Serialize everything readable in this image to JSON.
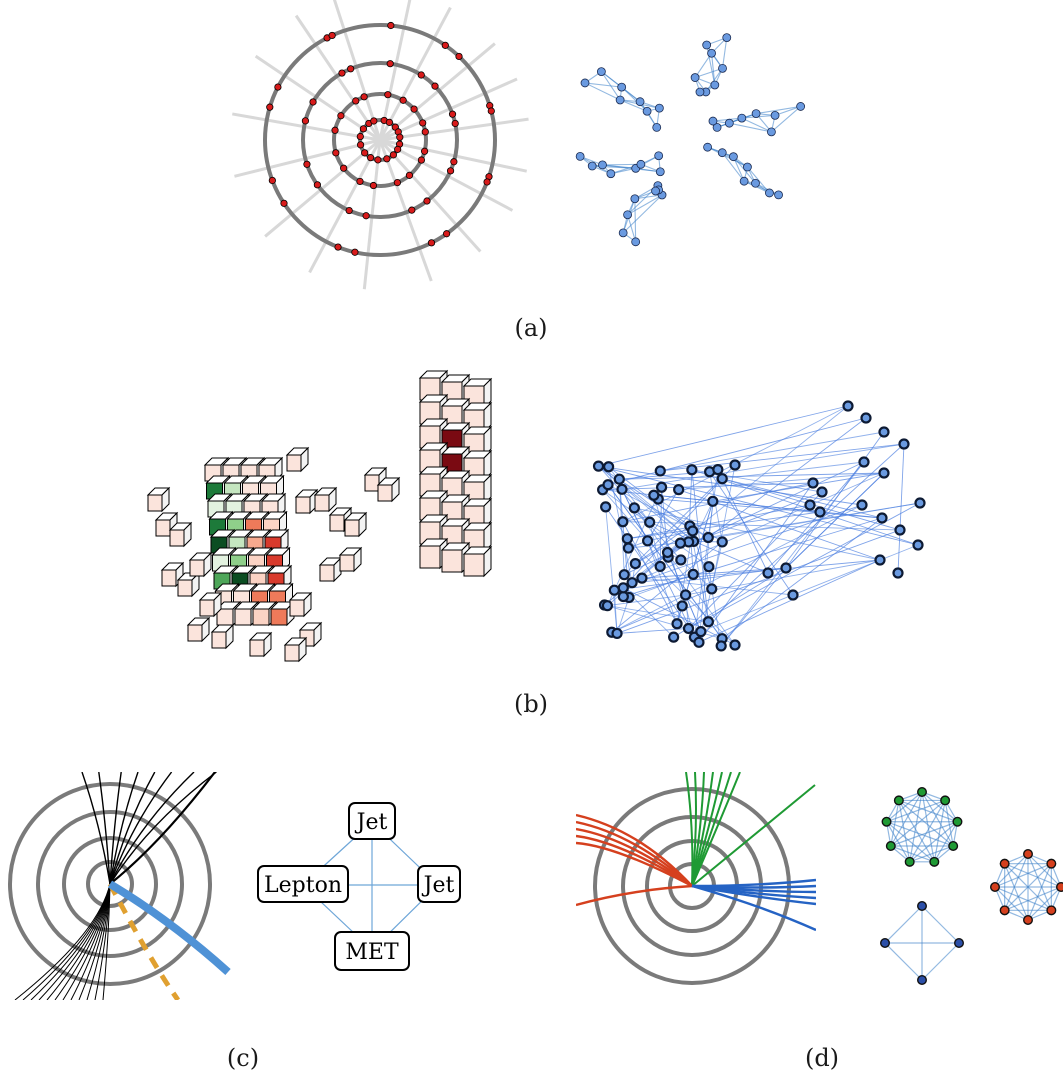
{
  "captions": {
    "a": "(a)",
    "b": "(b)",
    "c": "(c)",
    "d": "(d)"
  },
  "panel_c": {
    "nodes": {
      "jet_top": "Jet",
      "lepton": "Lepton",
      "jet_right": "Jet",
      "met": "MET"
    }
  },
  "colors": {
    "hit_red": "#d81b1b",
    "node_blue": "#6a9ae0",
    "edge_blue": "#3a7fc8",
    "ring_gray": "#7a7a7a",
    "cell_green_dark": "#0b4d22",
    "cell_red_dark": "#7a0a12",
    "track_blue": "#4f92d6",
    "met_orange": "#e0a030",
    "jet_green": "#1f9a34",
    "jet_red": "#d5401e",
    "jet_blue": "#2563c4"
  }
}
